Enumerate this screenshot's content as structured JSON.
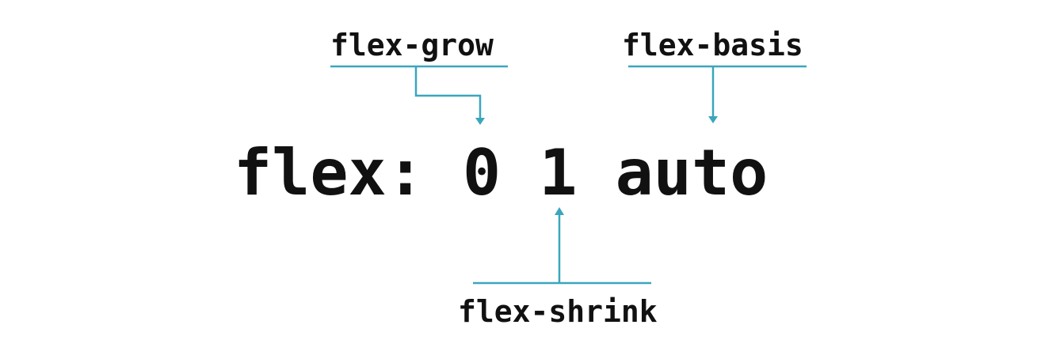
{
  "labels": {
    "flex_grow": "flex-grow",
    "flex_basis": "flex-basis",
    "flex_shrink": "flex-shrink"
  },
  "declaration": "flex: 0 1 auto",
  "colors": {
    "connector": "#3aa6bd",
    "text": "#111111",
    "background": "#ffffff"
  }
}
